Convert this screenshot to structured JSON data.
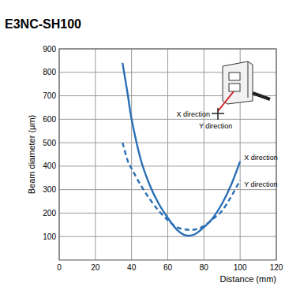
{
  "chart_data": {
    "type": "line",
    "title": "E3NC-SH100",
    "x_label": "Distance (mm)",
    "y_label": "Beam diameter (μm)",
    "x": [
      35,
      38,
      40,
      45,
      50,
      55,
      60,
      65,
      70,
      75,
      80,
      85,
      90,
      95,
      100
    ],
    "series": [
      {
        "name": "X direction",
        "color": "#2a6fb6",
        "line_style": "solid",
        "values": [
          840,
          700,
          600,
          430,
          320,
          240,
          180,
          130,
          105,
          110,
          140,
          180,
          240,
          320,
          420
        ]
      },
      {
        "name": "Y direction",
        "color": "#2a6fb6",
        "line_style": "dashed",
        "values": [
          500,
          420,
          390,
          320,
          260,
          210,
          170,
          140,
          130,
          130,
          145,
          175,
          210,
          270,
          340
        ]
      }
    ],
    "xlim": [
      0,
      120
    ],
    "xticks": [
      0,
      20,
      40,
      60,
      80,
      100,
      120
    ],
    "ylim": [
      0,
      900
    ],
    "yticks": [
      100,
      200,
      300,
      400,
      500,
      600,
      700,
      800,
      900
    ],
    "grid": true
  }
}
